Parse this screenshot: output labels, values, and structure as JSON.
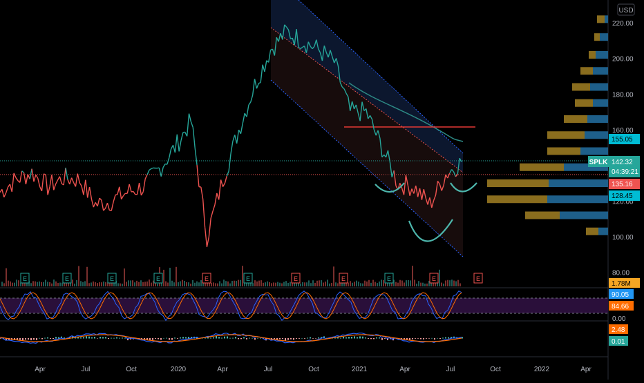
{
  "symbol": "SPLK",
  "currency": "USD",
  "countdown": "04:39:21",
  "colors": {
    "background": "#000000",
    "up": "#26a69a",
    "down": "#ef5350",
    "resistance": "#e53935",
    "channel": "#2962ff",
    "volume_profile_up": "#1e5f8a",
    "volume_profile_down": "#8a6d1e",
    "stoch_band": "#2a0f3a",
    "macd_line": "#2962ff",
    "signal_line": "#ff6d00",
    "pattern": "#4db6ac"
  },
  "price_axis": {
    "ticks": [
      "220.00",
      "200.00",
      "180.00",
      "160.00",
      "140.00",
      "120.00",
      "100.00",
      "80.00"
    ],
    "badges": {
      "price": "142.32",
      "level_155": "155.05",
      "level_135": "135.16",
      "level_128": "128.45",
      "volume": "1.78M",
      "stoch_k": "90.05",
      "stoch_d": "84.66",
      "stoch_zero": "0.00",
      "macd": "2.48",
      "macd_signal": "0.01"
    }
  },
  "time_axis": {
    "labels": [
      "Apr",
      "Jul",
      "Oct",
      "2020",
      "Apr",
      "Jul",
      "Oct",
      "2021",
      "Apr",
      "Jul",
      "Oct",
      "2022",
      "Apr"
    ]
  },
  "earnings_markers": [
    "E",
    "E",
    "E",
    "E",
    "E",
    "E",
    "E",
    "E",
    "E",
    "E",
    "E"
  ],
  "chart_data": {
    "type": "line",
    "ylim": [
      80,
      224
    ],
    "x": [
      "2019-02",
      "2019-03",
      "2019-04",
      "2019-05",
      "2019-06",
      "2019-07",
      "2019-08",
      "2019-09",
      "2019-10",
      "2019-11",
      "2019-12",
      "2020-01",
      "2020-02",
      "2020-03",
      "2020-04",
      "2020-05",
      "2020-06",
      "2020-07",
      "2020-08",
      "2020-09",
      "2020-10",
      "2020-11",
      "2020-12",
      "2021-01",
      "2021-02",
      "2021-03",
      "2021-04",
      "2021-05",
      "2021-06",
      "2021-07"
    ],
    "series": [
      {
        "values": [
          125,
          132,
          136,
          128,
          133,
          132,
          118,
          120,
          125,
          128,
          138,
          150,
          165,
          100,
          132,
          160,
          185,
          205,
          215,
          210,
          205,
          198,
          170,
          170,
          150,
          130,
          128,
          118,
          135,
          142
        ]
      }
    ],
    "resistance_level": 161,
    "reference_levels": [
      155.05,
      142.32,
      135.16,
      128.45
    ]
  }
}
